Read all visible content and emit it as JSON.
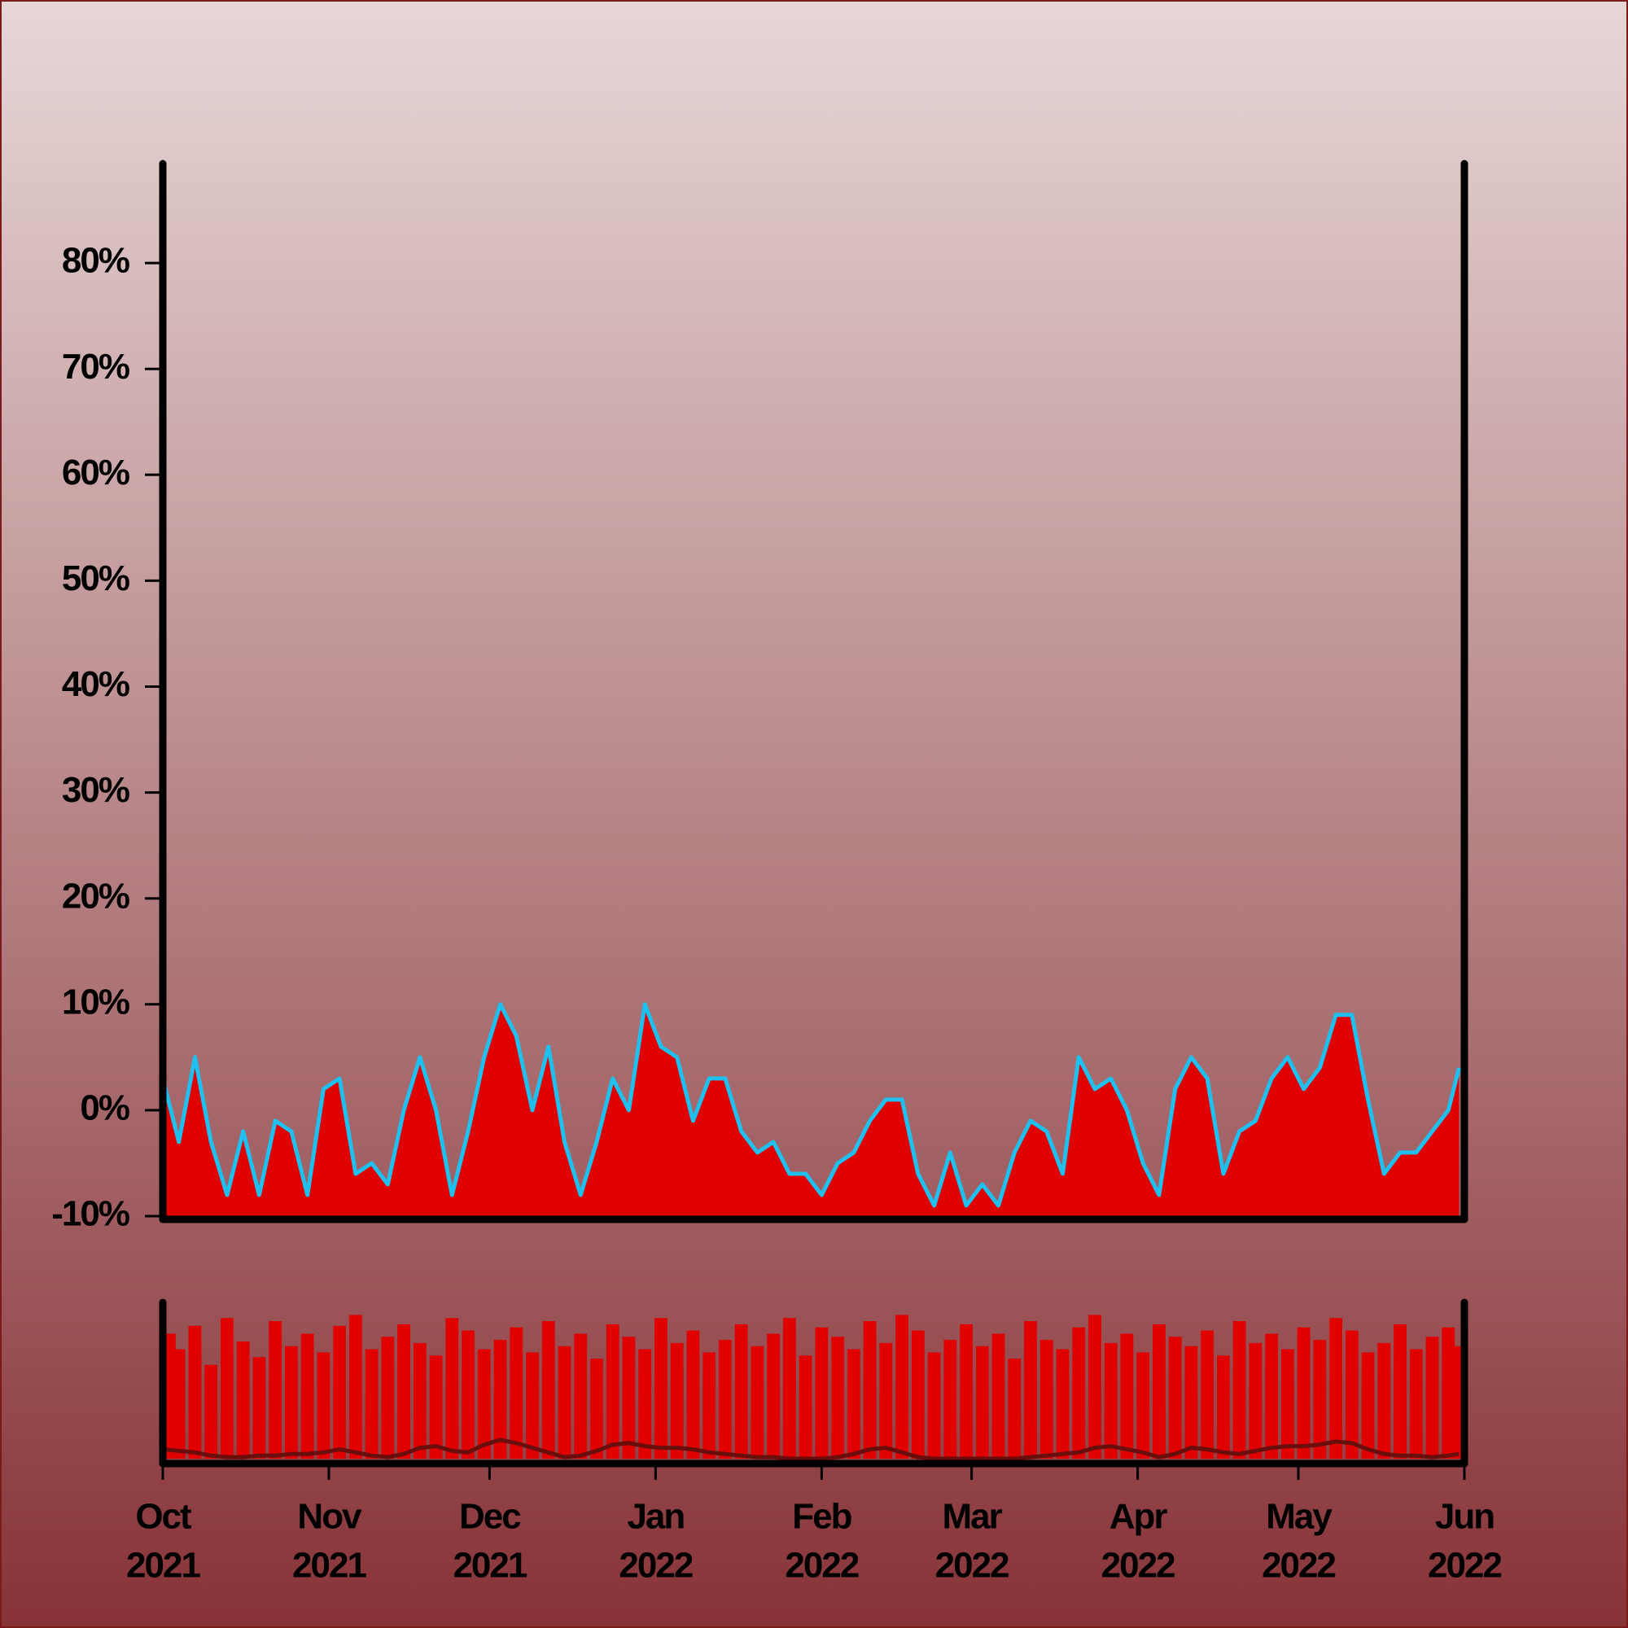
{
  "chart_data": {
    "type": "area",
    "x": [
      0,
      3,
      6,
      9,
      12,
      15,
      18,
      21,
      24,
      27,
      30,
      33,
      36,
      39,
      42,
      45,
      48,
      51,
      54,
      57,
      60,
      63,
      66,
      69,
      72,
      75,
      78,
      81,
      84,
      87,
      90,
      93,
      96,
      99,
      102,
      105,
      108,
      111,
      114,
      117,
      120,
      123,
      126,
      129,
      132,
      135,
      138,
      141,
      144,
      147,
      150,
      153,
      156,
      159,
      162,
      165,
      168,
      171,
      174,
      177,
      180,
      183,
      186,
      189,
      192,
      195,
      198,
      201,
      204,
      207,
      210,
      213,
      216,
      219,
      222,
      225,
      228,
      231,
      234,
      237,
      240,
      242
    ],
    "values": [
      3,
      -3,
      5,
      -3,
      -8,
      -2,
      -8,
      -1,
      -2,
      -8,
      2,
      3,
      -6,
      -5,
      -7,
      0,
      5,
      0,
      -8,
      -2,
      5,
      10,
      7,
      0,
      6,
      -3,
      -8,
      -3,
      3,
      0,
      10,
      6,
      5,
      -1,
      3,
      3,
      -2,
      -4,
      -3,
      -6,
      -6,
      -8,
      -5,
      -4,
      -1,
      1,
      1,
      -6,
      -9,
      -4,
      -9,
      -7,
      -9,
      -4,
      -1,
      -2,
      -6,
      5,
      2,
      3,
      0,
      -5,
      -8,
      2,
      5,
      3,
      -6,
      -2,
      -1,
      3,
      5,
      2,
      4,
      9,
      9,
      1,
      -6,
      -4,
      -4,
      -2,
      0,
      4
    ],
    "color": "#1ec0f0",
    "fill_color": "#e00000",
    "xlim": [
      0,
      243
    ],
    "xticks": [
      {
        "value": 0,
        "label": "Oct",
        "year": "2021"
      },
      {
        "value": 31,
        "label": "Nov",
        "year": "2021"
      },
      {
        "value": 61,
        "label": "Dec",
        "year": "2021"
      },
      {
        "value": 92,
        "label": "Jan",
        "year": "2022"
      },
      {
        "value": 123,
        "label": "Feb",
        "year": "2022"
      },
      {
        "value": 151,
        "label": "Mar",
        "year": "2022"
      },
      {
        "value": 182,
        "label": "Apr",
        "year": "2022"
      },
      {
        "value": 212,
        "label": "May",
        "year": "2022"
      },
      {
        "value": 243,
        "label": "Jun",
        "year": "2022"
      }
    ],
    "ylim": [
      -10,
      90
    ],
    "yticks": [
      {
        "value": -10,
        "label": "-10%"
      },
      {
        "value": 0,
        "label": "0%"
      },
      {
        "value": 10,
        "label": "10%"
      },
      {
        "value": 20,
        "label": "20%"
      },
      {
        "value": 30,
        "label": "30%"
      },
      {
        "value": 40,
        "label": "40%"
      },
      {
        "value": 50,
        "label": "50%"
      },
      {
        "value": 60,
        "label": "60%"
      },
      {
        "value": 70,
        "label": "70%"
      },
      {
        "value": 80,
        "label": "80%"
      }
    ],
    "volume": {
      "values": [
        80,
        70,
        85,
        60,
        90,
        75,
        65,
        88,
        72,
        80,
        68,
        85,
        92,
        70,
        78,
        86,
        74,
        66,
        90,
        82,
        70,
        76,
        84,
        68,
        88,
        72,
        80,
        64,
        86,
        78,
        70,
        90,
        74,
        82,
        68,
        76,
        86,
        72,
        80,
        90,
        66,
        84,
        78,
        70,
        88,
        74,
        92,
        82,
        68,
        76,
        86,
        72,
        80,
        64,
        88,
        76,
        70,
        84,
        92,
        74,
        80,
        68,
        86,
        78,
        72,
        82,
        66,
        88,
        74,
        80,
        70,
        84,
        76,
        90,
        82,
        68,
        74,
        86,
        70,
        78,
        84,
        72
      ],
      "color": "#e00000",
      "ma": [
        6,
        5,
        4,
        2,
        1,
        1,
        2,
        2,
        3,
        3,
        4,
        6,
        4,
        2,
        1,
        3,
        7,
        8,
        5,
        4,
        9,
        12,
        10,
        7,
        4,
        1,
        2,
        5,
        9,
        10,
        8,
        7,
        7,
        6,
        4,
        3,
        2,
        1,
        1,
        0,
        0,
        0,
        1,
        3,
        6,
        7,
        4,
        1,
        0,
        0,
        0,
        0,
        0,
        0,
        1,
        2,
        3,
        4,
        7,
        8,
        6,
        4,
        1,
        3,
        7,
        6,
        4,
        3,
        5,
        7,
        8,
        8,
        9,
        11,
        10,
        6,
        3,
        2,
        2,
        1,
        2,
        3
      ],
      "ma_color": "#6a0d0d",
      "ylim": [
        0,
        100
      ]
    }
  }
}
